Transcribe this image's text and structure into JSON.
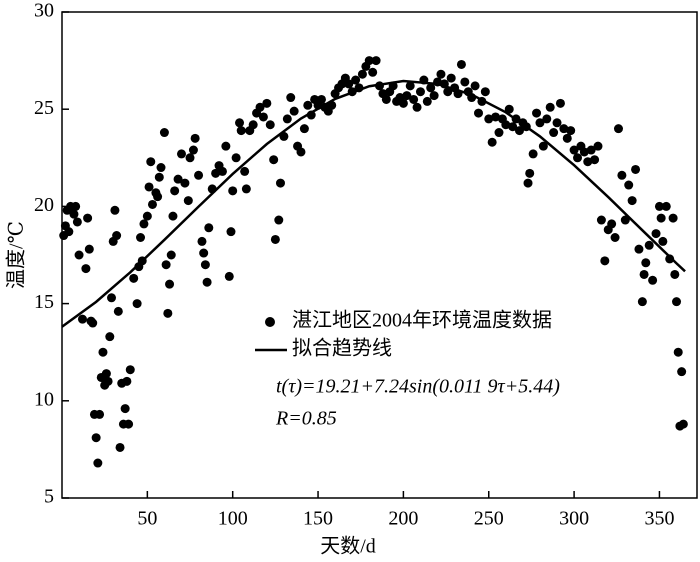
{
  "chart_data": {
    "type": "scatter",
    "xlabel": "天数/d",
    "ylabel": "温度/℃",
    "xlim": [
      0,
      372
    ],
    "ylim": [
      5,
      30
    ],
    "xticks": [
      50,
      100,
      150,
      200,
      250,
      300,
      350
    ],
    "yticks": [
      5,
      10,
      15,
      20,
      25,
      30
    ],
    "legend": "center",
    "annotations": [
      "t(τ)=19.21+7.24sin(0.011 9τ+5.44)",
      "R=0.85"
    ],
    "series": [
      {
        "name": "湛江地区2004年环境温度数据",
        "type": "scatter",
        "color": "#000000",
        "x": [
          1,
          2,
          3,
          4,
          5,
          7,
          8,
          9,
          10,
          12,
          14,
          15,
          16,
          17,
          18,
          19,
          20,
          21,
          22,
          23,
          24,
          25,
          26,
          27,
          28,
          29,
          30,
          31,
          32,
          33,
          34,
          35,
          36,
          37,
          38,
          39,
          40,
          42,
          44,
          45,
          46,
          47,
          48,
          50,
          51,
          52,
          53,
          55,
          56,
          57,
          58,
          60,
          61,
          62,
          63,
          64,
          65,
          66,
          68,
          70,
          72,
          74,
          75,
          77,
          78,
          80,
          82,
          83,
          84,
          85,
          86,
          88,
          90,
          92,
          94,
          96,
          98,
          99,
          100,
          102,
          104,
          105,
          107,
          108,
          110,
          112,
          114,
          116,
          118,
          120,
          122,
          124,
          125,
          127,
          128,
          130,
          132,
          134,
          136,
          138,
          140,
          142,
          144,
          146,
          148,
          150,
          152,
          154,
          156,
          158,
          160,
          162,
          164,
          166,
          168,
          170,
          172,
          174,
          176,
          178,
          180,
          182,
          184,
          186,
          188,
          190,
          192,
          194,
          196,
          198,
          200,
          202,
          204,
          206,
          208,
          210,
          212,
          214,
          216,
          218,
          220,
          222,
          224,
          226,
          228,
          230,
          232,
          234,
          236,
          238,
          240,
          242,
          244,
          246,
          248,
          250,
          252,
          254,
          256,
          258,
          260,
          262,
          264,
          266,
          268,
          270,
          272,
          273,
          274,
          276,
          278,
          280,
          282,
          284,
          286,
          288,
          290,
          292,
          294,
          296,
          298,
          300,
          302,
          304,
          306,
          308,
          310,
          312,
          314,
          316,
          318,
          320,
          322,
          324,
          326,
          328,
          330,
          332,
          334,
          336,
          338,
          340,
          341,
          342,
          344,
          346,
          348,
          350,
          351,
          352,
          354,
          356,
          358,
          359,
          360,
          361,
          362,
          363,
          364
        ],
        "values": [
          18.5,
          19,
          19.8,
          18.7,
          20,
          19.6,
          20,
          19.2,
          17.5,
          14.2,
          16.8,
          19.4,
          17.8,
          14.1,
          14,
          9.3,
          8.1,
          6.8,
          9.3,
          11.2,
          12.5,
          10.8,
          11.4,
          11,
          13.3,
          15.3,
          18.2,
          19.8,
          18.5,
          14.6,
          7.6,
          10.9,
          8.8,
          9.6,
          11,
          8.8,
          11.6,
          16.3,
          15,
          16.9,
          18.4,
          17.2,
          19.1,
          19.5,
          21,
          22.3,
          20.1,
          20.7,
          20.5,
          21.5,
          22,
          23.8,
          17,
          14.5,
          16,
          17.5,
          19.5,
          20.8,
          21.4,
          22.7,
          21.2,
          20.3,
          22.5,
          22.9,
          23.5,
          21.6,
          18.2,
          17.6,
          17,
          16.1,
          18.9,
          20.9,
          21.7,
          22.1,
          21.8,
          23.1,
          16.4,
          18.7,
          20.8,
          22.5,
          24.3,
          23.9,
          21.8,
          20.9,
          23.9,
          24.2,
          24.8,
          25.1,
          24.6,
          25.3,
          24.2,
          22.4,
          18.3,
          19.3,
          21.2,
          23.6,
          24.5,
          25.6,
          24.9,
          23.1,
          22.8,
          24,
          25.2,
          24.7,
          25.5,
          25.2,
          25.5,
          25.1,
          24.9,
          25.2,
          25.8,
          26.1,
          26.3,
          26.6,
          26.3,
          25.9,
          26.5,
          26.1,
          26.8,
          27.2,
          27.5,
          26.9,
          27.5,
          26.2,
          25.8,
          25.5,
          25.9,
          26.2,
          25.4,
          25.6,
          25.3,
          25.7,
          26.2,
          25.5,
          25.1,
          25.9,
          26.5,
          25.4,
          26.1,
          25.7,
          26.4,
          26.8,
          26.3,
          25.9,
          26.6,
          26.1,
          25.8,
          27.3,
          26.4,
          25.9,
          25.6,
          26.2,
          24.8,
          25.4,
          25.9,
          24.5,
          23.3,
          24.6,
          23.8,
          24.5,
          24.2,
          25,
          24.1,
          24.5,
          23.9,
          24.3,
          24.1,
          21.2,
          21.7,
          22.7,
          24.8,
          24.3,
          23.1,
          24.5,
          25.1,
          23.8,
          24.3,
          25.3,
          24,
          23.5,
          23.9,
          22.9,
          22.5,
          23.1,
          22.8,
          22.3,
          22.9,
          22.4,
          23.1,
          19.3,
          17.2,
          18.8,
          19.1,
          18.4,
          24,
          21.6,
          19.3,
          21.1,
          20.3,
          21.9,
          17.8,
          15.1,
          16.5,
          17.1,
          18,
          16.2,
          18.6,
          20,
          19.4,
          18.2,
          20,
          17.3,
          19.4,
          16.5,
          15.1,
          12.5,
          8.7,
          11.5,
          8.8
        ]
      },
      {
        "name": "拟合趋势线",
        "type": "line",
        "color": "#000000",
        "x": [
          0,
          20,
          40,
          60,
          80,
          100,
          120,
          140,
          160,
          180,
          200,
          220,
          240,
          260,
          280,
          300,
          320,
          340,
          360,
          365
        ],
        "values": [
          13.81,
          15.09,
          16.61,
          18.28,
          19.99,
          21.67,
          23.21,
          24.52,
          25.53,
          26.18,
          26.45,
          26.3,
          25.75,
          24.84,
          23.6,
          22.12,
          20.48,
          18.77,
          17.07,
          16.66
        ]
      }
    ]
  }
}
